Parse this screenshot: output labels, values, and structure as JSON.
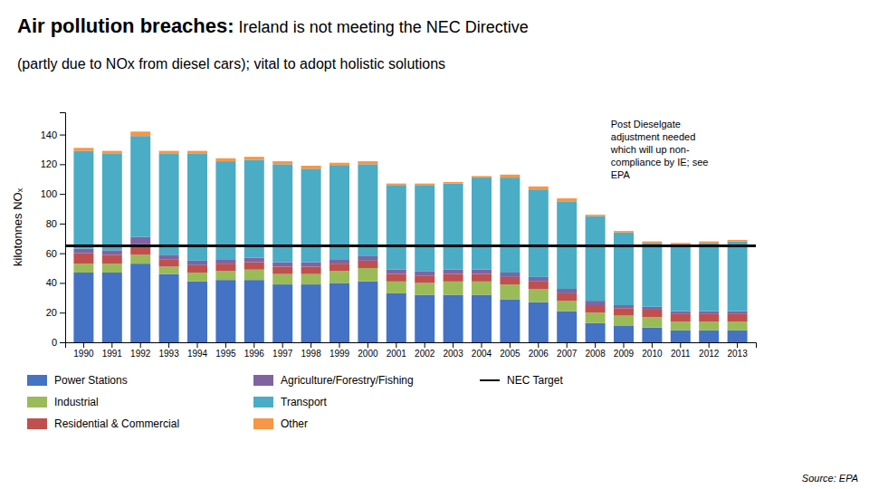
{
  "chart_data": {
    "type": "bar",
    "stacked": true,
    "grid": false,
    "legend": "bottom",
    "title": [
      "Air pollution breaches:",
      " Ireland is not meeting the NEC Directive"
    ],
    "subtitle": "(partly due to NOx from diesel cars); vital to adopt holistic solutions",
    "ylabel": "kilotonnes NOₓ",
    "annotations": [
      "Post Dieselgate\nadjustment needed\nwhich will up non-\ncompliance by IE; see\nEPA"
    ],
    "source": "Source: EPA",
    "categories": [
      "1990",
      "1991",
      "1992",
      "1993",
      "1994",
      "1995",
      "1996",
      "1997",
      "1998",
      "1999",
      "2000",
      "2001",
      "2002",
      "2003",
      "2004",
      "2005",
      "2006",
      "2007",
      "2008",
      "2009",
      "2010",
      "2011",
      "2012",
      "2013"
    ],
    "series": [
      {
        "name": "Power Stations",
        "color": "#4472C4",
        "values": [
          47,
          47,
          53,
          46,
          41,
          42,
          42,
          39,
          39,
          40,
          41,
          33,
          32,
          32,
          32,
          29,
          27,
          21,
          13,
          11,
          10,
          8,
          8,
          8
        ]
      },
      {
        "name": "Industrial",
        "color": "#9BBB59",
        "values": [
          6,
          6,
          6,
          5,
          6,
          6,
          7,
          7,
          7,
          8,
          9,
          8,
          8,
          9,
          9,
          10,
          9,
          7,
          7,
          7,
          7,
          6,
          6,
          6
        ]
      },
      {
        "name": "Residential & Commercial",
        "color": "#C0504D",
        "values": [
          7,
          6,
          7,
          5,
          5,
          5,
          5,
          5,
          5,
          5,
          5,
          5,
          5,
          5,
          5,
          5,
          5,
          5,
          5,
          5,
          5,
          5,
          5,
          5
        ]
      },
      {
        "name": "Agriculture/Forestry/Fishing",
        "color": "#8064A2",
        "values": [
          3,
          3,
          5,
          3,
          3,
          3,
          3,
          3,
          3,
          3,
          3,
          3,
          3,
          3,
          3,
          3,
          3,
          3,
          3,
          2,
          2,
          2,
          2,
          2
        ]
      },
      {
        "name": "Transport",
        "color": "#4BACC6",
        "values": [
          66,
          65,
          68,
          68,
          72,
          66,
          66,
          66,
          63,
          63,
          62,
          57,
          58,
          58,
          62,
          64,
          59,
          59,
          57,
          49,
          43,
          45,
          46,
          47
        ]
      },
      {
        "name": "Other",
        "color": "#F79646",
        "values": [
          2,
          2,
          3,
          2,
          2,
          2,
          2,
          2,
          2,
          2,
          2,
          1,
          1,
          1,
          1,
          2,
          2,
          2,
          1,
          1,
          1,
          1,
          1,
          1
        ]
      }
    ],
    "reference_lines": [
      {
        "name": "NEC Target",
        "value": 65,
        "color": "#000000"
      }
    ],
    "ylim": [
      0,
      155
    ],
    "yticks": [
      0,
      20,
      40,
      60,
      80,
      100,
      120,
      140
    ]
  }
}
